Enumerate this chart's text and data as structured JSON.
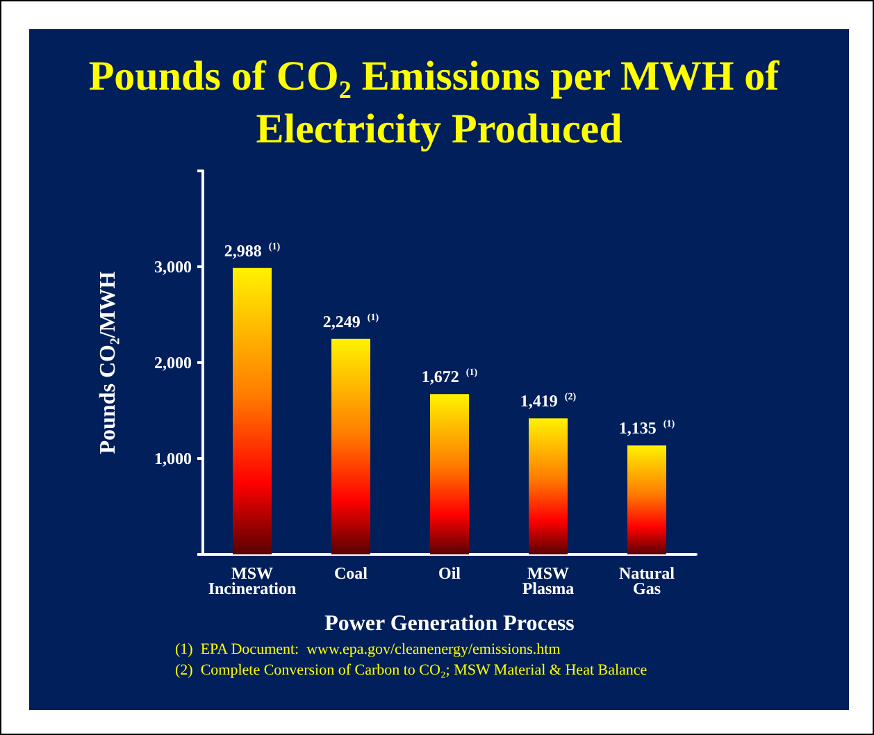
{
  "chart_data": {
    "type": "bar",
    "title": "Pounds of CO₂ Emissions per MWH of Electricity Produced",
    "xlabel": "Power Generation Process",
    "ylabel": "Pounds CO₂/MWH",
    "categories": [
      "MSW Incineration",
      "Coal",
      "Oil",
      "MSW Plasma",
      "Natural Gas"
    ],
    "values": [
      2988,
      2249,
      1672,
      1419,
      1135
    ],
    "value_labels": [
      "2,988 $^{(1)}$",
      "2,249 $^{(1)}$",
      "1,672 $^{(1)}$",
      "1,419 $^{(2)}$",
      "1,135 $^{(1)}$"
    ],
    "color": "#ff7a00",
    "ylim": [
      0,
      4000
    ],
    "yticks": [
      {
        "value": 0,
        "label": null
      },
      {
        "value": 1000,
        "label": "1,000"
      },
      {
        "value": 2000,
        "label": "2,000"
      },
      {
        "value": 3000,
        "label": "3,000"
      },
      {
        "value": 4000,
        "label": null
      }
    ],
    "annotations": [
      "(1)  EPA Document:  www.epa.gov/cleanenergy/emissions.htm",
      "(2)  Complete Conversion of Carbon to CO₂; MSW Material & Heat Balance"
    ]
  }
}
